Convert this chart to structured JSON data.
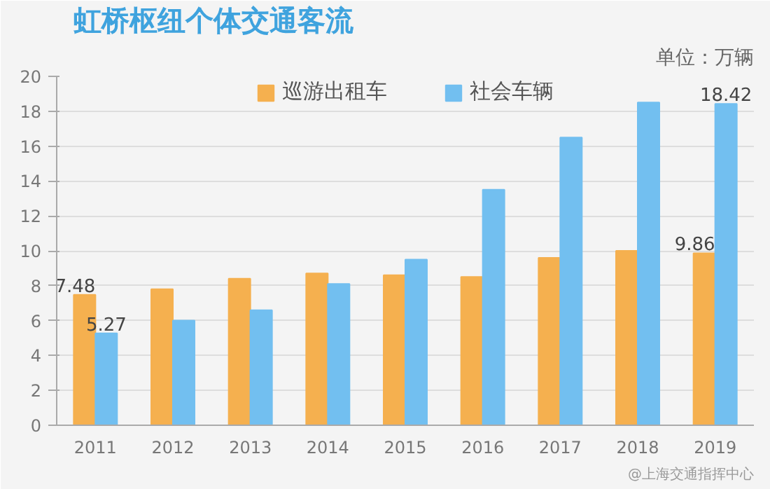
{
  "chart_data": {
    "type": "bar",
    "title": "虹桥枢纽个体交通客流",
    "annotations": [
      "单位：万辆",
      "@上海交通指挥中心"
    ],
    "categories": [
      "2011",
      "2012",
      "2013",
      "2014",
      "2015",
      "2016",
      "2017",
      "2018",
      "2019"
    ],
    "series": [
      {
        "name": "巡游出租车",
        "color": "#f5b04f",
        "values": [
          7.48,
          7.8,
          8.4,
          8.7,
          8.6,
          8.5,
          9.6,
          10.0,
          9.86
        ],
        "value_labels": [
          "7.48",
          null,
          null,
          null,
          null,
          null,
          null,
          null,
          "9.86"
        ]
      },
      {
        "name": "社会车辆",
        "color": "#72bff0",
        "values": [
          5.27,
          6.0,
          6.6,
          8.1,
          9.5,
          13.5,
          16.5,
          18.5,
          18.42
        ],
        "value_labels": [
          "5.27",
          null,
          null,
          null,
          null,
          null,
          null,
          null,
          "18.42"
        ]
      }
    ],
    "ylim": [
      0,
      20
    ],
    "yticks": [
      0,
      2,
      4,
      6,
      8,
      10,
      12,
      14,
      16,
      18,
      20
    ],
    "grid": "y",
    "legend": "top"
  }
}
